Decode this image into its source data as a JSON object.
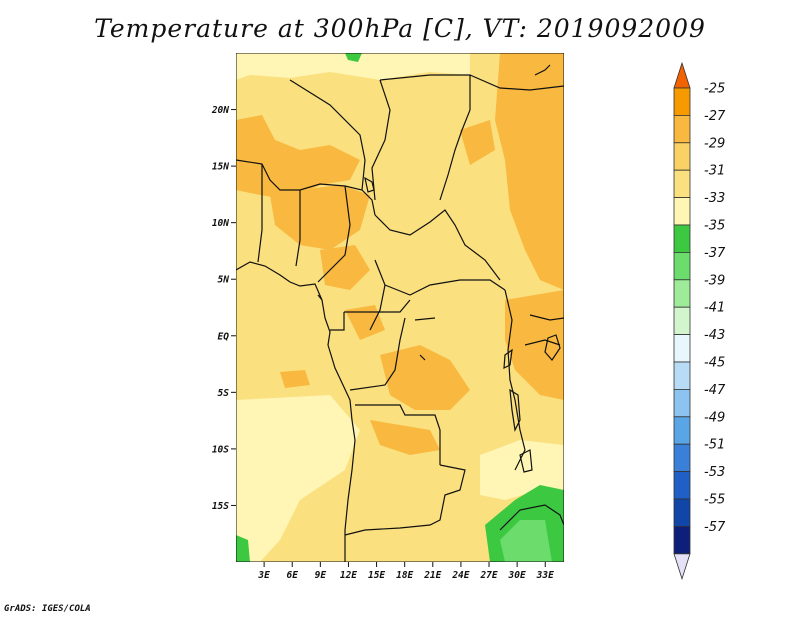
{
  "title": "Temperature at 300hPa [C], VT: 2019092009",
  "credit": "GrADS: IGES/COLA",
  "map": {
    "lon_range": [
      0,
      35
    ],
    "lat_range": [
      -20,
      25
    ],
    "x_ticks": [
      "3E",
      "6E",
      "9E",
      "12E",
      "15E",
      "18E",
      "21E",
      "24E",
      "27E",
      "30E",
      "33E"
    ],
    "y_ticks": [
      "20N",
      "15N",
      "10N",
      "5N",
      "EQ",
      "5S",
      "10S",
      "15S"
    ],
    "base_fill": "#fae07e"
  },
  "colorbar": {
    "labels": [
      "-25",
      "-27",
      "-29",
      "-31",
      "-33",
      "-35",
      "-37",
      "-39",
      "-41",
      "-43",
      "-45",
      "-47",
      "-49",
      "-51",
      "-53",
      "-55",
      "-57"
    ],
    "colors": [
      "#f26200",
      "#f79a00",
      "#f9b83f",
      "#fad164",
      "#fae07e",
      "#fff5b4",
      "#3dc842",
      "#6cdc6c",
      "#9eeb9a",
      "#d3f5ce",
      "#e8f7fb",
      "#b8dcf5",
      "#8cc3f0",
      "#5aa5e6",
      "#3a80d8",
      "#1f5fc6",
      "#1245a8",
      "#0d1f78",
      "#e5e2f8"
    ]
  }
}
